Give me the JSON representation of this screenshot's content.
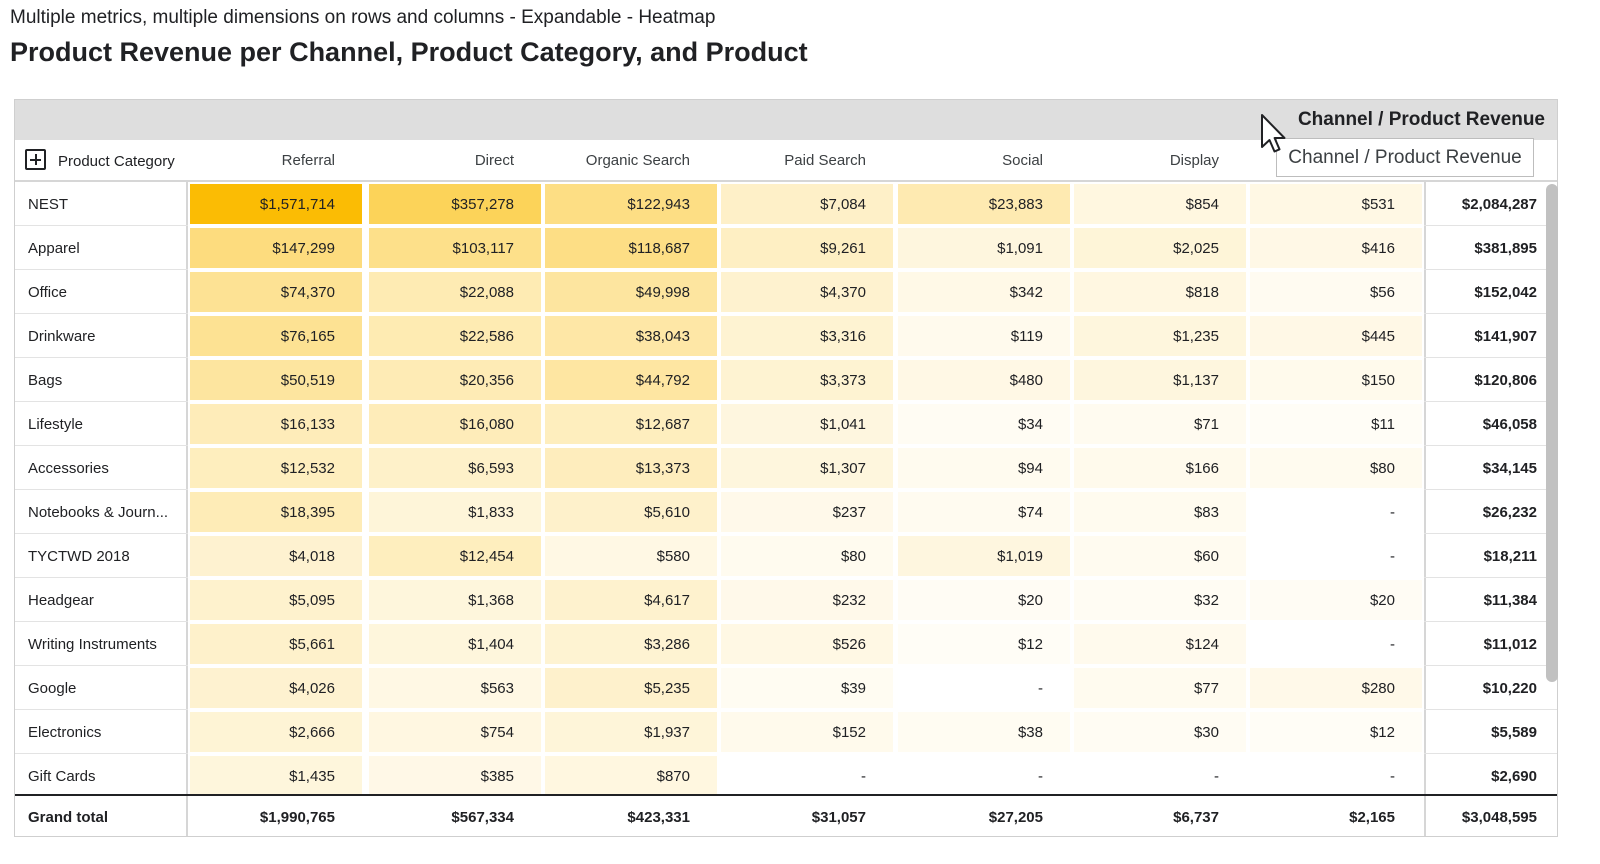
{
  "page": {
    "subtitle": "Multiple metrics, multiple dimensions on rows and columns - Expandable - Heatmap",
    "title": "Product Revenue per Channel, Product Category, and Product"
  },
  "table": {
    "column_group_label": "Channel / Product Revenue",
    "row_dimension_label": "Product Category",
    "expand_icon": "plus-square-icon",
    "heat_color": "#fbbc04",
    "columns": [
      "Referral",
      "Direct",
      "Organic Search",
      "Paid Search",
      "Social",
      "Display",
      "",
      ""
    ],
    "rows": [
      {
        "label": "NEST",
        "values": [
          "$1,571,714",
          "$357,278",
          "$122,943",
          "$7,084",
          "$23,883",
          "$854",
          "$531"
        ],
        "total": "$2,084,287"
      },
      {
        "label": "Apparel",
        "values": [
          "$147,299",
          "$103,117",
          "$118,687",
          "$9,261",
          "$1,091",
          "$2,025",
          "$416"
        ],
        "total": "$381,895"
      },
      {
        "label": "Office",
        "values": [
          "$74,370",
          "$22,088",
          "$49,998",
          "$4,370",
          "$342",
          "$818",
          "$56"
        ],
        "total": "$152,042"
      },
      {
        "label": "Drinkware",
        "values": [
          "$76,165",
          "$22,586",
          "$38,043",
          "$3,316",
          "$119",
          "$1,235",
          "$445"
        ],
        "total": "$141,907"
      },
      {
        "label": "Bags",
        "values": [
          "$50,519",
          "$20,356",
          "$44,792",
          "$3,373",
          "$480",
          "$1,137",
          "$150"
        ],
        "total": "$120,806"
      },
      {
        "label": "Lifestyle",
        "values": [
          "$16,133",
          "$16,080",
          "$12,687",
          "$1,041",
          "$34",
          "$71",
          "$11"
        ],
        "total": "$46,058"
      },
      {
        "label": "Accessories",
        "values": [
          "$12,532",
          "$6,593",
          "$13,373",
          "$1,307",
          "$94",
          "$166",
          "$80"
        ],
        "total": "$34,145"
      },
      {
        "label": "Notebooks & Journ...",
        "values": [
          "$18,395",
          "$1,833",
          "$5,610",
          "$237",
          "$74",
          "$83",
          "-"
        ],
        "total": "$26,232"
      },
      {
        "label": "TYCTWD 2018",
        "values": [
          "$4,018",
          "$12,454",
          "$580",
          "$80",
          "$1,019",
          "$60",
          "-"
        ],
        "total": "$18,211"
      },
      {
        "label": "Headgear",
        "values": [
          "$5,095",
          "$1,368",
          "$4,617",
          "$232",
          "$20",
          "$32",
          "$20"
        ],
        "total": "$11,384"
      },
      {
        "label": "Writing Instruments",
        "values": [
          "$5,661",
          "$1,404",
          "$3,286",
          "$526",
          "$12",
          "$124",
          "-"
        ],
        "total": "$11,012"
      },
      {
        "label": "Google",
        "values": [
          "$4,026",
          "$563",
          "$5,235",
          "$39",
          "-",
          "$77",
          "$280"
        ],
        "total": "$10,220"
      },
      {
        "label": "Electronics",
        "values": [
          "$2,666",
          "$754",
          "$1,937",
          "$152",
          "$38",
          "$30",
          "$12"
        ],
        "total": "$5,589"
      },
      {
        "label": "Gift Cards",
        "values": [
          "$1,435",
          "$385",
          "$870",
          "-",
          "-",
          "-",
          "-"
        ],
        "total": "$2,690"
      }
    ],
    "grand_total": {
      "label": "Grand total",
      "values": [
        "$1,990,765",
        "$567,334",
        "$423,331",
        "$31,057",
        "$27,205",
        "$6,737",
        "$2,165"
      ],
      "total": "$3,048,595"
    }
  },
  "tooltip": {
    "text": "Channel / Product Revenue"
  },
  "cursor_icon": "mouse-pointer-icon"
}
